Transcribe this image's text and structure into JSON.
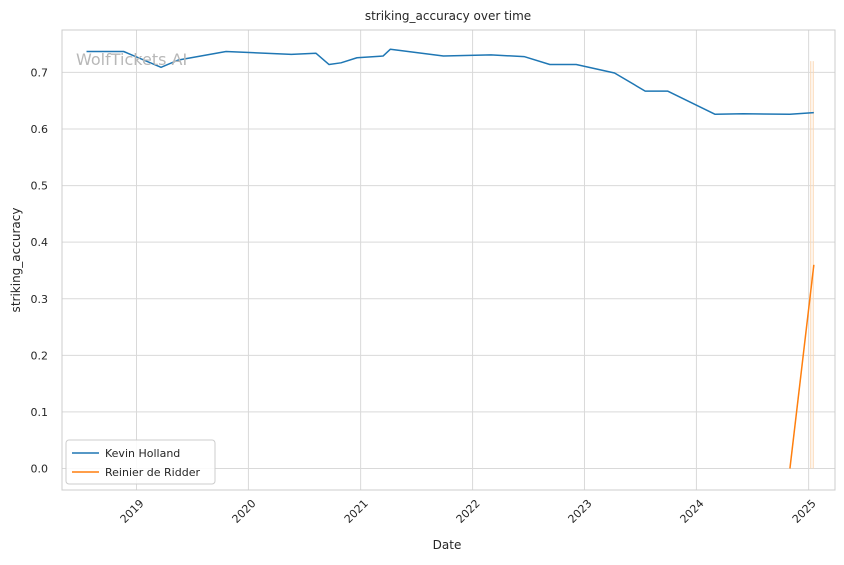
{
  "chart_data": {
    "type": "line",
    "title": "striking_accuracy over time",
    "xlabel": "Date",
    "ylabel": "striking_accuracy",
    "watermark": "WolfTickets AI",
    "x_ticks": [
      "2019",
      "2020",
      "2021",
      "2022",
      "2023",
      "2024",
      "2025"
    ],
    "y_ticks": [
      "0.0",
      "0.1",
      "0.2",
      "0.3",
      "0.4",
      "0.5",
      "0.6",
      "0.7"
    ],
    "xlim": [
      "2018-05-03",
      "2025-03-28"
    ],
    "ylim": [
      -0.038,
      0.775
    ],
    "grid": true,
    "legend_position": "lower-left",
    "series": [
      {
        "name": "Kevin Holland",
        "color": "#1f77b4",
        "points": [
          [
            "2018-07-22",
            0.737
          ],
          [
            "2018-09-20",
            0.737
          ],
          [
            "2018-11-20",
            0.737
          ],
          [
            "2019-03-22",
            0.709
          ],
          [
            "2019-05-18",
            0.722
          ],
          [
            "2019-10-20",
            0.737
          ],
          [
            "2020-05-20",
            0.732
          ],
          [
            "2020-08-08",
            0.734
          ],
          [
            "2020-09-20",
            0.714
          ],
          [
            "2020-10-29",
            0.717
          ],
          [
            "2020-12-20",
            0.726
          ],
          [
            "2021-03-15",
            0.729
          ],
          [
            "2021-04-08",
            0.741
          ],
          [
            "2021-09-28",
            0.729
          ],
          [
            "2022-03-02",
            0.731
          ],
          [
            "2022-06-18",
            0.728
          ],
          [
            "2022-09-10",
            0.714
          ],
          [
            "2022-12-05",
            0.714
          ],
          [
            "2023-04-09",
            0.699
          ],
          [
            "2023-07-18",
            0.667
          ],
          [
            "2023-09-29",
            0.667
          ],
          [
            "2024-03-02",
            0.626
          ],
          [
            "2024-06-01",
            0.627
          ],
          [
            "2024-11-01",
            0.626
          ],
          [
            "2025-01-18",
            0.629
          ]
        ]
      },
      {
        "name": "Reinier de Ridder",
        "color": "#ff7f0e",
        "points": [
          [
            "2024-11-01",
            0.0
          ],
          [
            "2025-01-18",
            0.36
          ]
        ]
      }
    ],
    "faint_marks": [
      {
        "color": "#fbd7b4",
        "points": [
          [
            "2025-01-08",
            0.0
          ],
          [
            "2025-01-08",
            0.72
          ]
        ]
      },
      {
        "color": "#fbd7b4",
        "points": [
          [
            "2025-01-16",
            0.0
          ],
          [
            "2025-01-16",
            0.72
          ]
        ]
      }
    ]
  }
}
